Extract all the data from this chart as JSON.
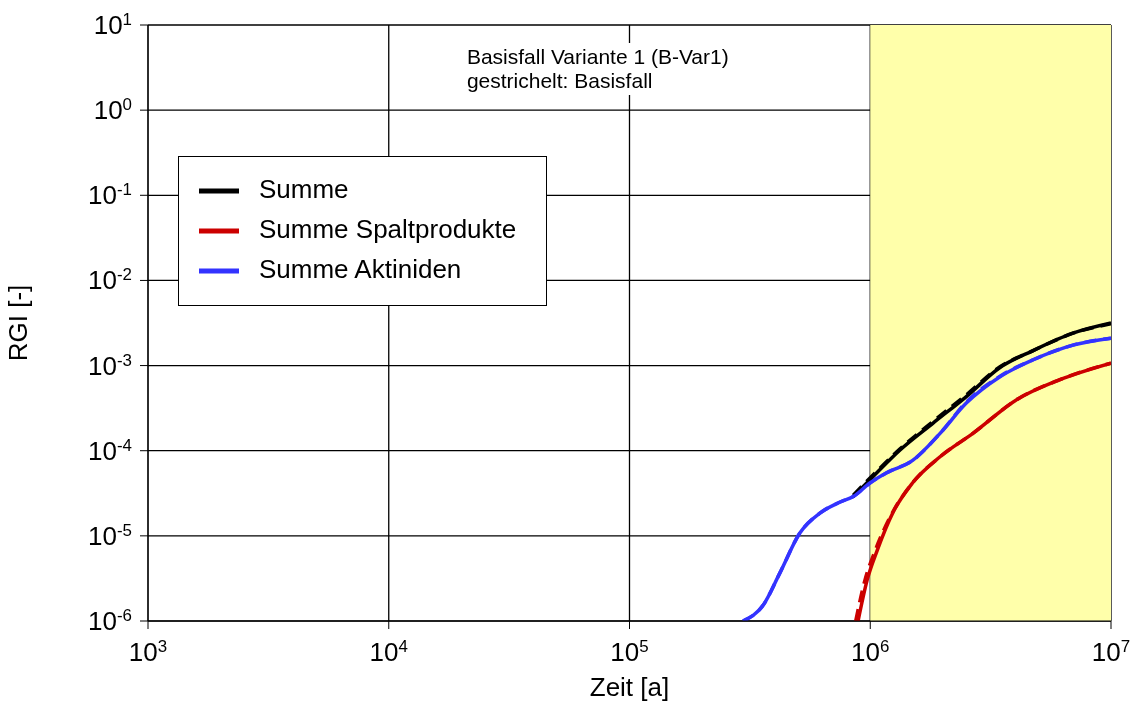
{
  "chart_data": {
    "type": "line",
    "xlabel": "Zeit [a]",
    "ylabel": "RGI [-]",
    "log": "xy",
    "annotations": [
      "Basisfall Variante 1 (B-Var1)",
      "gestrichelt: Basisfall"
    ],
    "xlim": [
      1000,
      10000000
    ],
    "ylim": [
      1e-06,
      10
    ],
    "xticks": [
      {
        "value": 1000,
        "label": "10$^{3}$"
      },
      {
        "value": 10000,
        "label": "10$^{4}$"
      },
      {
        "value": 100000,
        "label": "10$^{5}$"
      },
      {
        "value": 1000000,
        "label": "10$^{6}$"
      },
      {
        "value": 10000000,
        "label": "10$^{7}$"
      }
    ],
    "yticks": [
      {
        "value": 1e-06,
        "label": "10$^{-6}$"
      },
      {
        "value": 1e-05,
        "label": "10$^{-5}$"
      },
      {
        "value": 0.0001,
        "label": "10$^{-4}$"
      },
      {
        "value": 0.001,
        "label": "10$^{-3}$"
      },
      {
        "value": 0.01,
        "label": "10$^{-2}$"
      },
      {
        "value": 0.1,
        "label": "10$^{-1}$"
      },
      {
        "value": 1,
        "label": "10$^{0}$"
      },
      {
        "value": 10,
        "label": "10$^{1}$"
      }
    ],
    "grid": true,
    "legend": "top left",
    "line_style": "solid",
    "bands": [
      {
        "axis": "x",
        "from": 1000000,
        "to": 10000000,
        "color": "#ffffaa"
      }
    ],
    "series": [
      {
        "line_style": "dashed",
        "color": "#000000",
        "x": [
          850000,
          1000000,
          1330000,
          1820000,
          2500000,
          3460000,
          4750000,
          6950000,
          10000000
        ],
        "values": [
          3e-05,
          4.8e-05,
          0.000105,
          0.00022,
          0.00045,
          0.00097,
          0.0015,
          0.0024,
          0.0031
        ]
      },
      {
        "line_style": "dashed",
        "color": "#cc0000",
        "x": [
          870000,
          950000,
          1050000,
          1240000,
          1500000,
          1950000,
          2670000,
          4070000,
          6100000,
          10000000
        ],
        "values": [
          1e-06,
          3e-06,
          6.8e-06,
          1.9e-05,
          4.2e-05,
          8.5e-05,
          0.00016,
          0.0004,
          0.00068,
          0.00107
        ]
      },
      {
        "line_style": "dashed",
        "color": "#3333ff",
        "x": [
          296000,
          360000,
          420000,
          510000,
          620000,
          750000,
          850000,
          1000000,
          1170000,
          1500000,
          1950000,
          2500000,
          3460000,
          4750000,
          6950000,
          10000000
        ],
        "values": [
          1e-06,
          1.55e-06,
          3.6e-06,
          1.08e-05,
          1.86e-05,
          2.5e-05,
          2.9e-05,
          4.2e-05,
          5.5e-05,
          7.7e-05,
          0.00016,
          0.00037,
          0.00075,
          0.00117,
          0.00174,
          0.0021
        ]
      },
      {
        "name": "Summe",
        "color": "#000000",
        "x": [
          850000,
          1000000,
          1330000,
          1820000,
          2500000,
          3460000,
          4750000,
          6950000,
          10000000
        ],
        "values": [
          2.9e-05,
          4.6e-05,
          0.000102,
          0.00021,
          0.00043,
          0.00095,
          0.0015,
          0.0024,
          0.00316
        ]
      },
      {
        "name": "Summe Spaltprodukte",
        "color": "#cc0000",
        "x": [
          890000,
          970000,
          1070000,
          1240000,
          1500000,
          1950000,
          2670000,
          4070000,
          6100000,
          10000000
        ],
        "values": [
          1e-06,
          3e-06,
          6.8e-06,
          1.86e-05,
          4.2e-05,
          8.5e-05,
          0.00016,
          0.0004,
          0.00068,
          0.00107
        ]
      },
      {
        "name": "Summe Aktiniden",
        "color": "#3333ff",
        "x": [
          296000,
          360000,
          420000,
          510000,
          620000,
          750000,
          850000,
          1000000,
          1170000,
          1500000,
          1950000,
          2500000,
          3460000,
          4750000,
          6950000,
          10000000
        ],
        "values": [
          1e-06,
          1.55e-06,
          3.6e-06,
          1.08e-05,
          1.86e-05,
          2.5e-05,
          2.9e-05,
          4.2e-05,
          5.5e-05,
          7.7e-05,
          0.00016,
          0.00036,
          0.00074,
          0.00117,
          0.00174,
          0.0021
        ]
      }
    ]
  }
}
